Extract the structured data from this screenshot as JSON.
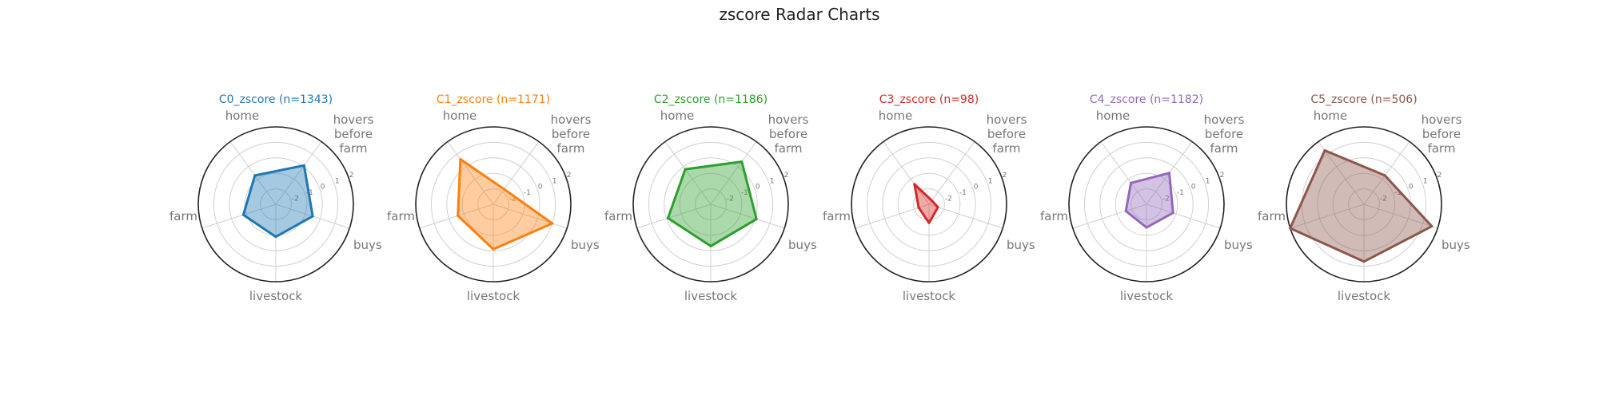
{
  "figure": {
    "suptitle": "zscore Radar Charts"
  },
  "chart_data": [
    {
      "type": "radar",
      "title": "C0_zscore (n=1343)",
      "color": "#1f77b4",
      "axes": [
        "hovers before farm",
        "home",
        "farm",
        "livestock",
        "buys"
      ],
      "axis_label_lines": [
        [
          "hovers",
          "before",
          "farm"
        ],
        [
          "home"
        ],
        [
          "farm"
        ],
        [
          "livestock"
        ],
        [
          "buys"
        ]
      ],
      "rlim": [
        -3,
        2
      ],
      "rticks": [
        -2,
        -1,
        0,
        1,
        2
      ],
      "rtick_labels": [
        "-2",
        "-1",
        "0",
        "1",
        "2"
      ],
      "values": [
        0.1,
        -0.7,
        -0.8,
        -0.9,
        -0.5
      ]
    },
    {
      "type": "radar",
      "title": "C1_zscore (n=1171)",
      "color": "#ff7f0e",
      "axes": [
        "hovers before farm",
        "home",
        "farm",
        "livestock",
        "buys"
      ],
      "axis_label_lines": [
        [
          "hovers",
          "before",
          "farm"
        ],
        [
          "home"
        ],
        [
          "farm"
        ],
        [
          "livestock"
        ],
        [
          "buys"
        ]
      ],
      "rlim": [
        -3,
        2
      ],
      "rticks": [
        -2,
        -1,
        0,
        1,
        2
      ],
      "rtick_labels": [
        "-2",
        "-1",
        "0",
        "1",
        "2"
      ],
      "values": [
        -1.8,
        0.6,
        -0.6,
        -0.1,
        1.0
      ]
    },
    {
      "type": "radar",
      "title": "C2_zscore (n=1186)",
      "color": "#2ca02c",
      "axes": [
        "hovers before farm",
        "home",
        "farm",
        "livestock",
        "buys"
      ],
      "axis_label_lines": [
        [
          "hovers",
          "before",
          "farm"
        ],
        [
          "home"
        ],
        [
          "farm"
        ],
        [
          "livestock"
        ],
        [
          "buys"
        ]
      ],
      "rlim": [
        -3,
        2
      ],
      "rticks": [
        -2,
        -1,
        0,
        1,
        2
      ],
      "rtick_labels": [
        "-2",
        "-1",
        "0",
        "1",
        "2"
      ],
      "values": [
        0.4,
        -0.2,
        -0.1,
        -0.3,
        0.1
      ]
    },
    {
      "type": "radar",
      "title": "C3_zscore (n=98)",
      "color": "#d62728",
      "axes": [
        "hovers before farm",
        "home",
        "farm",
        "livestock",
        "buys"
      ],
      "axis_label_lines": [
        [
          "hovers",
          "before",
          "farm"
        ],
        [
          "home"
        ],
        [
          "farm"
        ],
        [
          "livestock"
        ],
        [
          "buys"
        ]
      ],
      "rlim": [
        -3,
        2
      ],
      "rticks": [
        -2,
        -1,
        0,
        1,
        2
      ],
      "rtick_labels": [
        "-2",
        "-1",
        "0",
        "1",
        "2"
      ],
      "values": [
        -2.7,
        -1.4,
        -2.3,
        -1.8,
        -2.4
      ]
    },
    {
      "type": "radar",
      "title": "C4_zscore (n=1182)",
      "color": "#9467bd",
      "axes": [
        "hovers before farm",
        "home",
        "farm",
        "livestock",
        "buys"
      ],
      "axis_label_lines": [
        [
          "hovers",
          "before",
          "farm"
        ],
        [
          "home"
        ],
        [
          "farm"
        ],
        [
          "livestock"
        ],
        [
          "buys"
        ]
      ],
      "rlim": [
        -3,
        2
      ],
      "rticks": [
        -2,
        -1,
        0,
        1,
        2
      ],
      "rtick_labels": [
        "-2",
        "-1",
        "0",
        "1",
        "2"
      ],
      "values": [
        -0.5,
        -1.3,
        -1.6,
        -1.5,
        -1.2
      ]
    },
    {
      "type": "radar",
      "title": "C5_zscore (n=506)",
      "color": "#8c564b",
      "axes": [
        "hovers before farm",
        "home",
        "farm",
        "livestock",
        "buys"
      ],
      "axis_label_lines": [
        [
          "hovers",
          "before",
          "farm"
        ],
        [
          "home"
        ],
        [
          "farm"
        ],
        [
          "livestock"
        ],
        [
          "buys"
        ]
      ],
      "rlim": [
        -3,
        2
      ],
      "rticks": [
        -2,
        -1,
        0,
        1,
        2
      ],
      "rtick_labels": [
        "-2",
        "-1",
        "0",
        "1",
        "2"
      ],
      "values": [
        -0.7,
        1.3,
        2.0,
        0.7,
        1.6
      ]
    }
  ]
}
